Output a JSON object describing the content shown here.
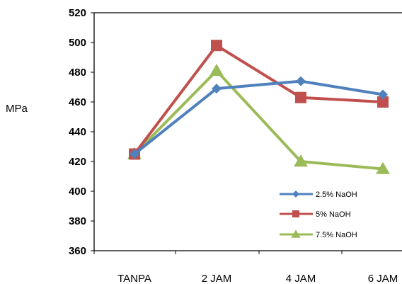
{
  "chart_data": {
    "type": "line",
    "title": "",
    "xlabel": "",
    "ylabel": "MPa",
    "categories": [
      "TANPA",
      "2 JAM",
      "4 JAM",
      "6 JAM"
    ],
    "ylim": [
      360,
      520
    ],
    "yticks": [
      360,
      380,
      400,
      420,
      440,
      460,
      480,
      500,
      520
    ],
    "grid": false,
    "legend_position": "bottom-right",
    "series": [
      {
        "name": "2.5% NaOH",
        "values": [
          425,
          469,
          474,
          465
        ],
        "color": "#4F81BD",
        "marker": "diamond"
      },
      {
        "name": "5% NaOH",
        "values": [
          425,
          498,
          463,
          460
        ],
        "color": "#C0504D",
        "marker": "square"
      },
      {
        "name": "7.5% NaOH",
        "values": [
          425,
          481,
          420,
          415
        ],
        "color": "#9BBB59",
        "marker": "triangle"
      }
    ]
  }
}
